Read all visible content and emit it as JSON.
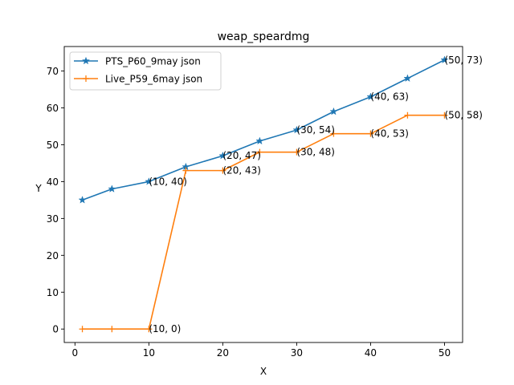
{
  "chart_data": {
    "type": "line",
    "title": "weap_speardmg",
    "xlabel": "X",
    "ylabel": "Y",
    "xlim": [
      -1.45,
      52.45
    ],
    "ylim": [
      -3.65,
      76.65
    ],
    "xticks": [
      0,
      10,
      20,
      30,
      40,
      50
    ],
    "yticks": [
      0,
      10,
      20,
      30,
      40,
      50,
      60,
      70
    ],
    "grid": false,
    "legend_position": "upper-left",
    "series": [
      {
        "name": "PTS_P60_9may json",
        "color": "#1f77b4",
        "marker": "star",
        "x": [
          1,
          5,
          10,
          15,
          20,
          25,
          30,
          35,
          40,
          45,
          50
        ],
        "y": [
          35,
          38,
          40,
          44,
          47,
          51,
          54,
          59,
          63,
          68,
          73
        ]
      },
      {
        "name": "Live_P59_6may json",
        "color": "#ff7f0e",
        "marker": "plus",
        "x": [
          1,
          5,
          10,
          15,
          20,
          25,
          30,
          35,
          40,
          45,
          50
        ],
        "y": [
          0,
          0,
          0,
          43,
          43,
          48,
          48,
          53,
          53,
          58,
          58
        ]
      }
    ],
    "annotations": [
      {
        "text": "(10, 40)",
        "x": 10,
        "y": 40
      },
      {
        "text": "(20, 47)",
        "x": 20,
        "y": 47
      },
      {
        "text": "(30, 54)",
        "x": 30,
        "y": 54
      },
      {
        "text": "(40, 63)",
        "x": 40,
        "y": 63
      },
      {
        "text": "(50, 73)",
        "x": 50,
        "y": 73
      },
      {
        "text": "(10, 0)",
        "x": 10,
        "y": 0
      },
      {
        "text": "(20, 43)",
        "x": 20,
        "y": 43
      },
      {
        "text": "(30, 48)",
        "x": 30,
        "y": 48
      },
      {
        "text": "(40, 53)",
        "x": 40,
        "y": 53
      },
      {
        "text": "(50, 58)",
        "x": 50,
        "y": 58
      }
    ]
  }
}
